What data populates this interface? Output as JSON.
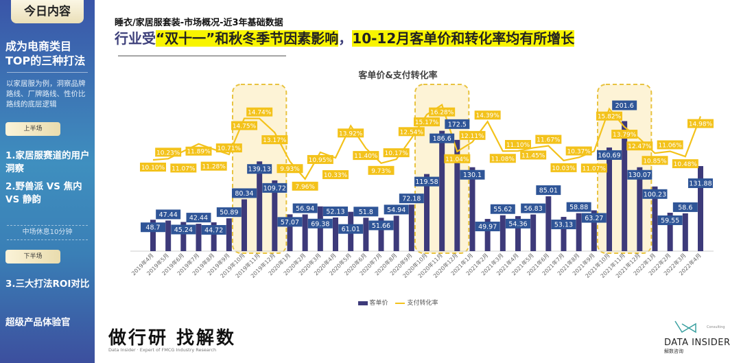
{
  "sidebar": {
    "today": "今日内容",
    "title": "成为电商类目TOP的三种打法",
    "desc": "以家居服为例，洞察品牌路线、厂牌路线、性价比路线的底层逻辑",
    "first_half": "上半场",
    "item1": "1.家居服赛道的用户洞察",
    "item2": "2.野兽派 VS 焦内 VS 静韵",
    "break": "中场休息10分钟",
    "second_half": "下半场",
    "item3": "3.三大打法ROI对比",
    "item4": "超级产品体验官"
  },
  "header": {
    "subtitle": "睡衣/家居服套装-市场概况-近3年基础数据",
    "headline_a": "行业受",
    "headline_b": "“双十一”和秋冬季节因素影响",
    "headline_c": "，",
    "headline_d": "10-12月客单价和转化率均有所增长"
  },
  "footer": {
    "brand": "做行研 找解数",
    "brand_sub": "Data Insider · Expert of FMCG Industry Research",
    "logo_name": "DATA INSIDER",
    "logo_cn": "解数咨询",
    "logo_consult": "Consulting"
  },
  "colors": {
    "bar": "#3d3a7a",
    "line": "#f3c21b",
    "bar_label_bg": "#2f5597",
    "highlight": "#fdf3d6"
  },
  "chart_data": {
    "type": "bar+line",
    "title": "客单价&支付转化率",
    "categories": [
      "2019年4月",
      "2019年5月",
      "2019年6月",
      "2019年7月",
      "2019年8月",
      "2019年9月",
      "2019年10月",
      "2019年11月",
      "2019年12月",
      "2020年1月",
      "2020年2月",
      "2020年3月",
      "2020年4月",
      "2020年5月",
      "2020年6月",
      "2020年7月",
      "2020年8月",
      "2020年9月",
      "2020年10月",
      "2020年11月",
      "2020年12月",
      "2021年1月",
      "2021年2月",
      "2021年3月",
      "2021年4月",
      "2021年5月",
      "2021年6月",
      "2021年7月",
      "2021年8月",
      "2021年9月",
      "2021年10月",
      "2021年11月",
      "2021年12月",
      "2022年1月",
      "2022年2月",
      "2022年3月",
      "2022年4月"
    ],
    "series": [
      {
        "name": "客单价",
        "type": "bar",
        "values": [
          48.7,
          47.44,
          45.24,
          42.44,
          44.72,
          50.89,
          80.34,
          139.13,
          109.72,
          57.07,
          56.94,
          69.38,
          52.13,
          61.01,
          51.8,
          51.66,
          54.94,
          72.18,
          119.58,
          186.6,
          172.5,
          130.1,
          49.97,
          55.62,
          54.36,
          56.83,
          85.01,
          53.13,
          58.88,
          63.27,
          160.69,
          201.6,
          130.07,
          100.23,
          59.55,
          58.6,
          131.88
        ]
      },
      {
        "name": "支付转化率",
        "type": "line",
        "unit": "%",
        "values": [
          10.1,
          10.23,
          11.07,
          11.89,
          11.28,
          10.71,
          14.75,
          14.74,
          13.17,
          9.93,
          7.96,
          10.95,
          10.33,
          13.92,
          11.4,
          9.73,
          10.17,
          12.54,
          15.17,
          16.28,
          11.04,
          12.11,
          14.39,
          11.08,
          11.1,
          11.45,
          11.67,
          10.03,
          10.37,
          11.07,
          15.82,
          13.79,
          12.47,
          10.85,
          11.06,
          10.48,
          14.98
        ]
      }
    ],
    "highlighted_periods": [
      [
        "2019年10月",
        "2019年12月"
      ],
      [
        "2020年10月",
        "2020年12月"
      ],
      [
        "2021年10月",
        "2021年12月"
      ]
    ],
    "legend": "bottom",
    "grid": false
  }
}
